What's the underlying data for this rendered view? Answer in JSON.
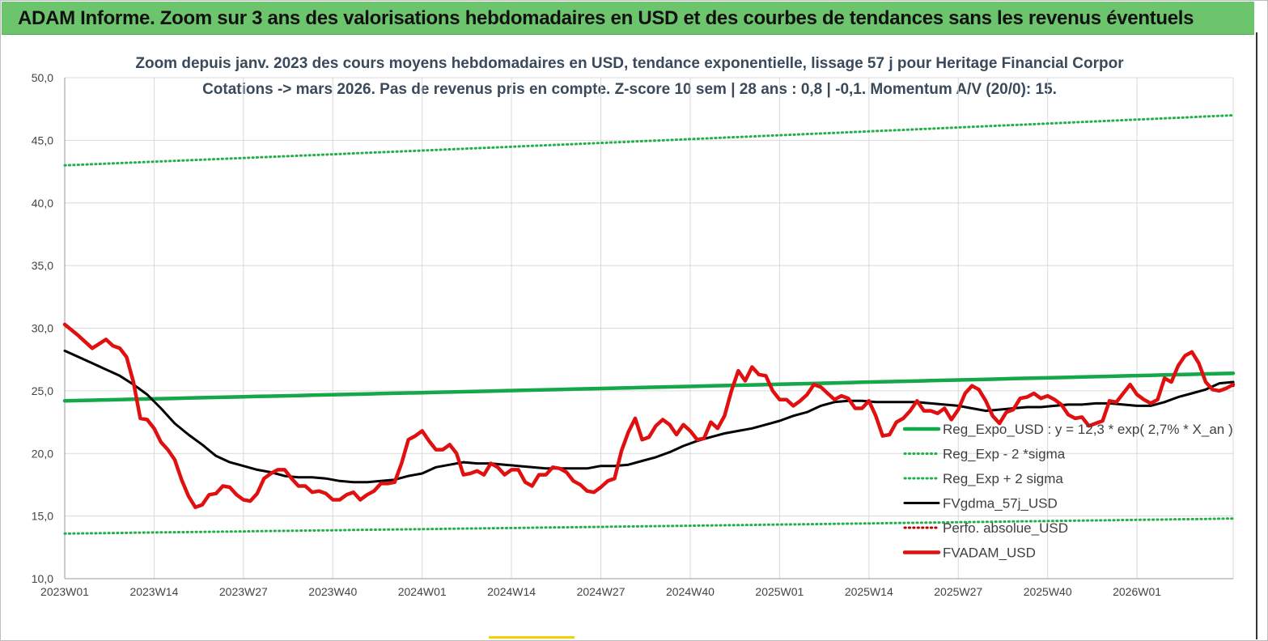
{
  "banner": {
    "title": "ADAM Informe. Zoom sur 3 ans des valorisations hebdomadaires en USD et des courbes de tendances sans les revenus éventuels"
  },
  "colors": {
    "banner_bg": "#6cc46c",
    "trend": "#14a84a",
    "bands": "#22b04a",
    "smooth": "#000000",
    "price": "#e01010",
    "perf": "#c00000"
  },
  "chart_data": {
    "type": "line",
    "title_line1": "Zoom depuis janv. 2023 des cours moyens hebdomadaires en USD, tendance exponentielle, lissage 57 j pour Heritage Financial Corpor",
    "title_line2": "Cotations -> mars 2026. Pas de revenus pris en compte. Z-score 10 sem | 28 ans : 0,8 | -0,1. Momentum A/V (20/0): 15.",
    "ylim": [
      10,
      50
    ],
    "yticks": [
      "10,0",
      "15,0",
      "20,0",
      "25,0",
      "30,0",
      "35,0",
      "40,0",
      "45,0",
      "50,0"
    ],
    "xticks": [
      "2023W01",
      "2023W14",
      "2023W27",
      "2023W40",
      "2024W01",
      "2024W14",
      "2024W27",
      "2024W40",
      "2025W01",
      "2025W14",
      "2025W27",
      "2025W40",
      "2026W01"
    ],
    "x_start": "2023W01",
    "n_weeks": 171,
    "grid": true,
    "legend_position": "right",
    "series": [
      {
        "name": "Reg_Expo_USD : y = 12,3 * exp( 2,7% *  X_an )",
        "style": "thick-solid",
        "color": "#14a84a",
        "points": [
          [
            0,
            24.2
          ],
          [
            170,
            26.4
          ]
        ]
      },
      {
        "name": "Reg_Exp - 2 *sigma",
        "style": "dotted",
        "color": "#22b04a",
        "points": [
          [
            0,
            13.6
          ],
          [
            170,
            14.8
          ]
        ]
      },
      {
        "name": "Reg_Exp + 2 sigma",
        "style": "dotted",
        "color": "#22b04a",
        "points": [
          [
            0,
            43.0
          ],
          [
            170,
            47.0
          ]
        ]
      },
      {
        "name": "FVgdma_57j_USD",
        "style": "solid",
        "color": "#000000",
        "points": [
          [
            0,
            28.2
          ],
          [
            4,
            27.2
          ],
          [
            8,
            26.2
          ],
          [
            10,
            25.5
          ],
          [
            12,
            24.7
          ],
          [
            14,
            23.6
          ],
          [
            16,
            22.4
          ],
          [
            18,
            21.5
          ],
          [
            20,
            20.7
          ],
          [
            22,
            19.8
          ],
          [
            24,
            19.3
          ],
          [
            26,
            19.0
          ],
          [
            28,
            18.7
          ],
          [
            30,
            18.5
          ],
          [
            32,
            18.2
          ],
          [
            34,
            18.1
          ],
          [
            36,
            18.1
          ],
          [
            38,
            18.0
          ],
          [
            40,
            17.8
          ],
          [
            42,
            17.7
          ],
          [
            44,
            17.7
          ],
          [
            46,
            17.8
          ],
          [
            48,
            17.9
          ],
          [
            50,
            18.2
          ],
          [
            52,
            18.4
          ],
          [
            54,
            18.9
          ],
          [
            56,
            19.1
          ],
          [
            58,
            19.3
          ],
          [
            60,
            19.2
          ],
          [
            62,
            19.2
          ],
          [
            64,
            19.1
          ],
          [
            66,
            19.0
          ],
          [
            68,
            18.9
          ],
          [
            70,
            18.8
          ],
          [
            72,
            18.8
          ],
          [
            74,
            18.8
          ],
          [
            76,
            18.8
          ],
          [
            78,
            19.0
          ],
          [
            80,
            19.0
          ],
          [
            82,
            19.1
          ],
          [
            84,
            19.4
          ],
          [
            86,
            19.7
          ],
          [
            88,
            20.1
          ],
          [
            90,
            20.6
          ],
          [
            92,
            21.0
          ],
          [
            94,
            21.3
          ],
          [
            96,
            21.6
          ],
          [
            98,
            21.8
          ],
          [
            100,
            22.0
          ],
          [
            102,
            22.3
          ],
          [
            104,
            22.6
          ],
          [
            106,
            23.0
          ],
          [
            108,
            23.3
          ],
          [
            110,
            23.8
          ],
          [
            112,
            24.1
          ],
          [
            114,
            24.2
          ],
          [
            116,
            24.2
          ],
          [
            118,
            24.1
          ],
          [
            120,
            24.1
          ],
          [
            122,
            24.1
          ],
          [
            124,
            24.1
          ],
          [
            126,
            24.0
          ],
          [
            128,
            23.9
          ],
          [
            130,
            23.8
          ],
          [
            132,
            23.6
          ],
          [
            134,
            23.4
          ],
          [
            136,
            23.5
          ],
          [
            138,
            23.6
          ],
          [
            140,
            23.7
          ],
          [
            142,
            23.7
          ],
          [
            144,
            23.8
          ],
          [
            146,
            23.9
          ],
          [
            148,
            23.9
          ],
          [
            150,
            24.0
          ],
          [
            152,
            24.0
          ],
          [
            154,
            23.9
          ],
          [
            156,
            23.8
          ],
          [
            158,
            23.8
          ],
          [
            160,
            24.1
          ],
          [
            162,
            24.5
          ],
          [
            164,
            24.8
          ],
          [
            166,
            25.1
          ],
          [
            168,
            25.6
          ],
          [
            170,
            25.7
          ],
          [
            172,
            25.5
          ],
          [
            174,
            25.4
          ],
          [
            175,
            25.5
          ]
        ]
      },
      {
        "name": "Perfo. absolue_USD",
        "style": "dotted",
        "color": "#c00000",
        "points": []
      },
      {
        "name": "FVADAM_USD",
        "style": "thick-solid",
        "color": "#e01010",
        "points": [
          [
            0,
            30.3
          ],
          [
            2,
            29.4
          ],
          [
            4,
            28.4
          ],
          [
            6,
            29.1
          ],
          [
            7,
            28.6
          ],
          [
            8,
            28.4
          ],
          [
            9,
            27.7
          ],
          [
            10,
            25.7
          ],
          [
            11,
            22.8
          ],
          [
            12,
            22.7
          ],
          [
            13,
            22.0
          ],
          [
            14,
            20.9
          ],
          [
            15,
            20.3
          ],
          [
            16,
            19.5
          ],
          [
            17,
            17.9
          ],
          [
            18,
            16.6
          ],
          [
            19,
            15.7
          ],
          [
            20,
            15.9
          ],
          [
            21,
            16.7
          ],
          [
            22,
            16.8
          ],
          [
            23,
            17.4
          ],
          [
            24,
            17.3
          ],
          [
            25,
            16.7
          ],
          [
            26,
            16.3
          ],
          [
            27,
            16.2
          ],
          [
            28,
            16.8
          ],
          [
            29,
            18.0
          ],
          [
            30,
            18.4
          ],
          [
            31,
            18.7
          ],
          [
            32,
            18.7
          ],
          [
            33,
            18.0
          ],
          [
            34,
            17.4
          ],
          [
            35,
            17.4
          ],
          [
            36,
            16.9
          ],
          [
            37,
            17.0
          ],
          [
            38,
            16.8
          ],
          [
            39,
            16.3
          ],
          [
            40,
            16.3
          ],
          [
            41,
            16.7
          ],
          [
            42,
            16.9
          ],
          [
            43,
            16.3
          ],
          [
            44,
            16.7
          ],
          [
            45,
            17.0
          ],
          [
            46,
            17.6
          ],
          [
            47,
            17.6
          ],
          [
            48,
            17.7
          ],
          [
            49,
            19.2
          ],
          [
            50,
            21.1
          ],
          [
            51,
            21.4
          ],
          [
            52,
            21.8
          ],
          [
            53,
            21.0
          ],
          [
            54,
            20.3
          ],
          [
            55,
            20.3
          ],
          [
            56,
            20.7
          ],
          [
            57,
            20.0
          ],
          [
            58,
            18.3
          ],
          [
            59,
            18.4
          ],
          [
            60,
            18.6
          ],
          [
            61,
            18.3
          ],
          [
            62,
            19.2
          ],
          [
            63,
            18.9
          ],
          [
            64,
            18.3
          ],
          [
            65,
            18.7
          ],
          [
            66,
            18.7
          ],
          [
            67,
            17.7
          ],
          [
            68,
            17.4
          ],
          [
            69,
            18.3
          ],
          [
            70,
            18.3
          ],
          [
            71,
            18.9
          ],
          [
            72,
            18.8
          ],
          [
            73,
            18.5
          ],
          [
            74,
            17.8
          ],
          [
            75,
            17.5
          ],
          [
            76,
            17.0
          ],
          [
            77,
            16.9
          ],
          [
            78,
            17.3
          ],
          [
            79,
            17.8
          ],
          [
            80,
            18.0
          ],
          [
            81,
            20.2
          ],
          [
            82,
            21.7
          ],
          [
            83,
            22.8
          ],
          [
            84,
            21.1
          ],
          [
            85,
            21.3
          ],
          [
            86,
            22.2
          ],
          [
            87,
            22.7
          ],
          [
            88,
            22.3
          ],
          [
            89,
            21.5
          ],
          [
            90,
            22.3
          ],
          [
            91,
            21.8
          ],
          [
            92,
            21.1
          ],
          [
            93,
            21.2
          ],
          [
            94,
            22.5
          ],
          [
            95,
            22.0
          ],
          [
            96,
            23.0
          ],
          [
            97,
            25.0
          ],
          [
            98,
            26.6
          ],
          [
            99,
            25.8
          ],
          [
            100,
            26.9
          ],
          [
            101,
            26.3
          ],
          [
            102,
            26.2
          ],
          [
            103,
            25.0
          ],
          [
            104,
            24.3
          ],
          [
            105,
            24.3
          ],
          [
            106,
            23.8
          ],
          [
            107,
            24.2
          ],
          [
            108,
            24.7
          ],
          [
            109,
            25.5
          ],
          [
            110,
            25.3
          ],
          [
            111,
            24.8
          ],
          [
            112,
            24.3
          ],
          [
            113,
            24.6
          ],
          [
            114,
            24.4
          ],
          [
            115,
            23.6
          ],
          [
            116,
            23.6
          ],
          [
            117,
            24.2
          ],
          [
            118,
            23.0
          ],
          [
            119,
            21.4
          ],
          [
            120,
            21.5
          ],
          [
            121,
            22.5
          ],
          [
            122,
            22.8
          ],
          [
            123,
            23.4
          ],
          [
            124,
            24.2
          ],
          [
            125,
            23.4
          ],
          [
            126,
            23.4
          ],
          [
            127,
            23.2
          ],
          [
            128,
            23.6
          ],
          [
            129,
            22.7
          ],
          [
            130,
            23.5
          ],
          [
            131,
            24.8
          ],
          [
            132,
            25.4
          ],
          [
            133,
            25.1
          ],
          [
            134,
            24.2
          ],
          [
            135,
            23.0
          ],
          [
            136,
            22.4
          ],
          [
            137,
            23.3
          ],
          [
            138,
            23.5
          ],
          [
            139,
            24.4
          ],
          [
            140,
            24.5
          ],
          [
            141,
            24.8
          ],
          [
            142,
            24.4
          ],
          [
            143,
            24.6
          ],
          [
            144,
            24.3
          ],
          [
            145,
            23.9
          ],
          [
            146,
            23.1
          ],
          [
            147,
            22.8
          ],
          [
            148,
            22.9
          ],
          [
            149,
            22.2
          ],
          [
            150,
            22.4
          ],
          [
            151,
            22.6
          ],
          [
            152,
            24.2
          ],
          [
            153,
            24.1
          ],
          [
            154,
            24.8
          ],
          [
            155,
            25.5
          ],
          [
            156,
            24.7
          ],
          [
            157,
            24.3
          ],
          [
            158,
            24.0
          ],
          [
            159,
            24.3
          ],
          [
            160,
            26.0
          ],
          [
            161,
            25.7
          ],
          [
            162,
            27.0
          ],
          [
            163,
            27.8
          ],
          [
            164,
            28.1
          ],
          [
            165,
            27.2
          ],
          [
            166,
            25.7
          ],
          [
            167,
            25.1
          ],
          [
            168,
            25.0
          ],
          [
            169,
            25.2
          ],
          [
            170,
            25.5
          ]
        ]
      }
    ]
  }
}
